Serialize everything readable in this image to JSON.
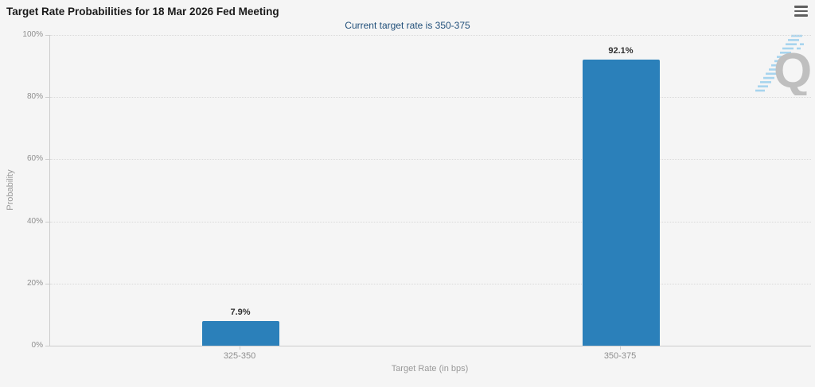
{
  "header": {
    "menu_icon": "hamburger-icon"
  },
  "watermark": {
    "letter": "Q",
    "icon": "quikstrike-q-logo"
  },
  "colors": {
    "bar": "#2b80ba",
    "subtitle": "#1f4e79",
    "title": "#1a1a1a",
    "tick_label": "#8e8e8e",
    "axis_title": "#999999",
    "value_label": "#333333",
    "gridline": "#d9d9d9",
    "axis_line": "#cccccc",
    "background": "#f5f5f5",
    "watermark_q": "#bdbdbd",
    "watermark_streak": "#a3d3ee"
  },
  "chart_data": {
    "type": "bar",
    "title": "Target Rate Probabilities for 18 Mar 2026 Fed Meeting",
    "subtitle": "Current target rate is 350-375",
    "categories": [
      "325-350",
      "350-375"
    ],
    "values": [
      7.9,
      92.1
    ],
    "value_labels": [
      "7.9%",
      "92.1%"
    ],
    "xlabel": "Target Rate (in bps)",
    "ylabel": "Probability",
    "ylim": [
      0,
      100
    ],
    "ytick_step": 20,
    "yticks": [
      "0%",
      "20%",
      "40%",
      "60%",
      "80%",
      "100%"
    ],
    "grid": "dotted-horizontal",
    "legend": "none"
  }
}
